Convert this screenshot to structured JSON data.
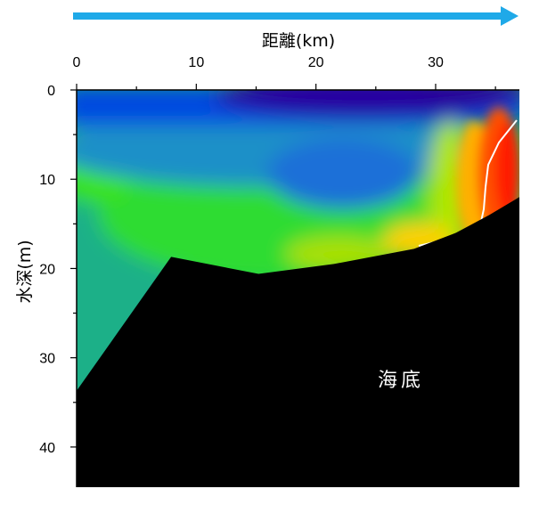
{
  "chart_data": {
    "type": "heatmap",
    "direction_arrow_color": "#1fa9e8",
    "xlabel": "距離(km)",
    "ylabel": "水深(m)",
    "x_axis_position": "top",
    "xlim": [
      0,
      37
    ],
    "ylim": [
      0,
      44.5
    ],
    "x_ticks": [
      0,
      10,
      20,
      30
    ],
    "y_ticks": [
      0,
      10,
      20,
      30,
      40
    ],
    "x_tick_labels": [
      "0",
      "10",
      "20",
      "30"
    ],
    "y_tick_labels": [
      "0",
      "10",
      "20",
      "30",
      "40"
    ],
    "colormap": [
      "#2800a0",
      "#0044e0",
      "#1e90c8",
      "#20c840",
      "#3ce600",
      "#c8e600",
      "#ffd000",
      "#ff7000",
      "#ff1e00"
    ],
    "contour_color": "#ffffff",
    "seafloor_profile": {
      "x": [
        0,
        7.9,
        15.2,
        21.5,
        28.2,
        31.7,
        34.5,
        37
      ],
      "depth": [
        33.7,
        18.7,
        20.6,
        19.5,
        17.8,
        16.0,
        14.0,
        12.0
      ]
    },
    "seafloor_label": "海底",
    "seafloor_color": "#000000"
  }
}
